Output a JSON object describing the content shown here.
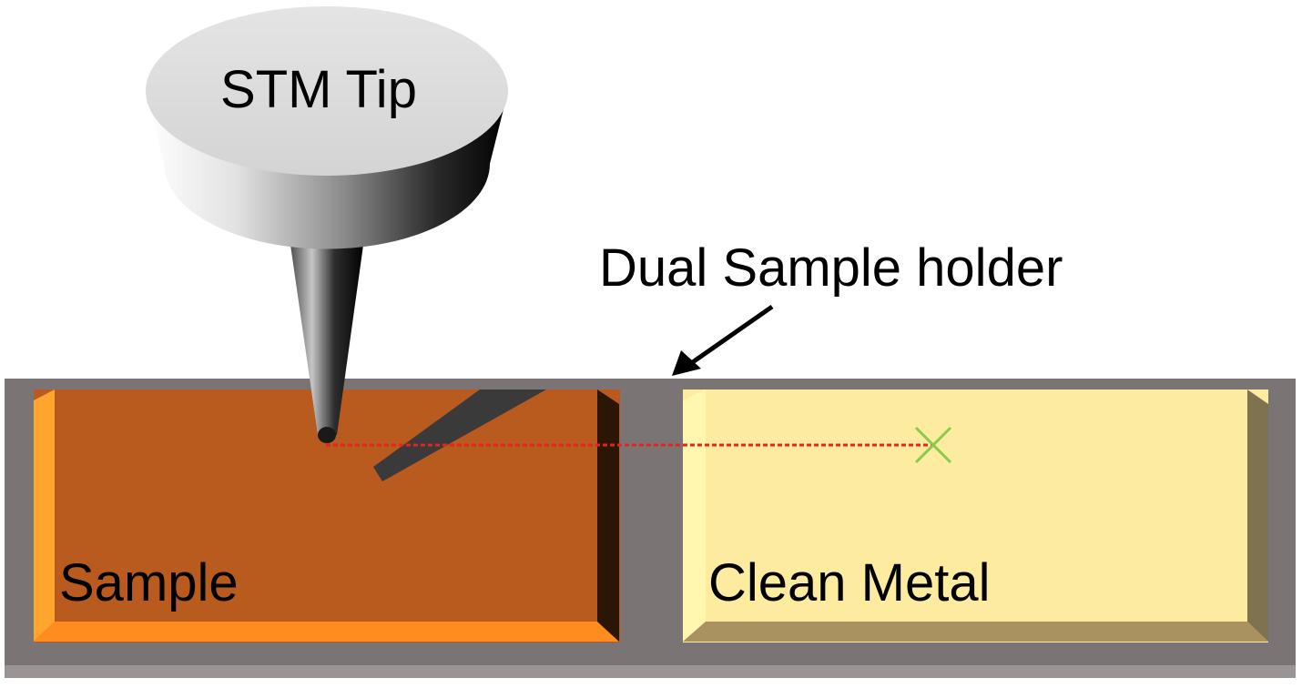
{
  "diagram": {
    "labels": {
      "tip": "STM Tip",
      "holder": "Dual Sample holder",
      "sample": "Sample",
      "metal": "Clean Metal"
    },
    "colors": {
      "background": "#ffffff",
      "holder_frame": "#7a7574",
      "holder_bottom_edge": "#9a9594",
      "sample_face": "#b95a1e",
      "sample_bevel_left": "#ffa52e",
      "sample_bevel_bottom": "#ff8c1f",
      "sample_bevel_right": "#2b1505",
      "metal_face": "#fdec9f",
      "metal_bevel_left": "#fff7b0",
      "metal_bevel_bottom": "#a99160",
      "metal_bevel_right": "#7f7250",
      "tip_top": "#dedede",
      "dotted_line": "#e8231b",
      "target_mark": "#8cc94f",
      "slash": "#3a3a3a",
      "arrow": "#000000"
    },
    "icons": {
      "target": "x-mark-icon",
      "pointer": "arrow-icon"
    }
  }
}
